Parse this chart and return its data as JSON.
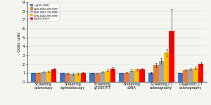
{
  "categories": [
    "Screening\ncolonosopy",
    "Screening\nsigmoidoscopy",
    "Screening\ngFOBT/FIT",
    "Screening\nsDNA",
    "Screening CT\ncolonography",
    "Diagnostic CT\ncolonography"
  ],
  "series_labels": [
    "<$25,000",
    "$25,000-49,999",
    "$50,000-74,999",
    "$75,000-99,999",
    "$100,000+"
  ],
  "colors": [
    "#4472c4",
    "#ed7d31",
    "#a5a5a5",
    "#ffc000",
    "#ff0000"
  ],
  "values": [
    [
      1.0,
      1.0,
      1.0,
      1.0,
      1.0,
      1.0
    ],
    [
      1.0,
      0.93,
      0.98,
      1.05,
      1.9,
      1.35
    ],
    [
      1.1,
      0.88,
      1.1,
      1.3,
      2.35,
      1.45
    ],
    [
      1.2,
      0.93,
      1.3,
      1.4,
      3.3,
      1.6
    ],
    [
      1.4,
      1.0,
      1.5,
      1.45,
      5.75,
      2.05
    ]
  ],
  "errors": [
    [
      0.04,
      0.04,
      0.04,
      0.04,
      0.12,
      0.06
    ],
    [
      0.06,
      0.07,
      0.06,
      0.07,
      0.22,
      0.1
    ],
    [
      0.08,
      0.1,
      0.09,
      0.1,
      0.32,
      0.12
    ],
    [
      0.1,
      0.12,
      0.11,
      0.13,
      0.38,
      0.14
    ],
    [
      0.14,
      0.14,
      0.13,
      0.16,
      2.5,
      0.18
    ]
  ],
  "ylabel": "Odds ratio",
  "ylim": [
    0,
    9
  ],
  "yticks": [
    0,
    1,
    2,
    3,
    4,
    5,
    6,
    7,
    8,
    9
  ],
  "background_color": "#f5f5f0",
  "plot_bg": "#f5f5f0"
}
